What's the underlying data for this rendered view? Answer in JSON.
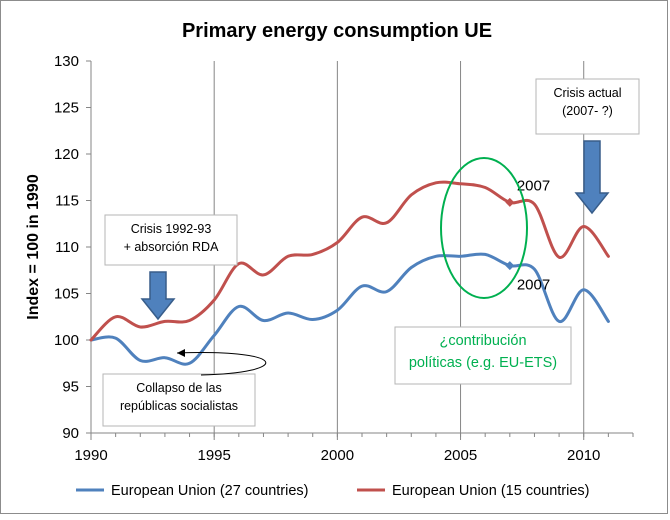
{
  "chart_data": {
    "type": "line",
    "title": "Primary energy consumption UE",
    "xlabel": "",
    "ylabel": "Index = 100 in 1990",
    "xlim": [
      1990,
      2012
    ],
    "ylim": [
      90,
      130
    ],
    "x_ticks": [
      "1990",
      "1995",
      "2000",
      "2005",
      "2010"
    ],
    "y_ticks": [
      "90",
      "95",
      "100",
      "105",
      "110",
      "115",
      "120",
      "125",
      "130"
    ],
    "grid": "vertical",
    "legend_position": "bottom",
    "x": [
      1990,
      1991,
      1992,
      1993,
      1994,
      1995,
      1996,
      1997,
      1998,
      1999,
      2000,
      2001,
      2002,
      2003,
      2004,
      2005,
      2006,
      2007,
      2008,
      2009,
      2010,
      2011
    ],
    "series": [
      {
        "name": "European Union (27 countries)",
        "color": "#4f81bd",
        "values": [
          100,
          100.2,
          97.8,
          98.1,
          97.5,
          100.5,
          103.6,
          102.1,
          102.9,
          102.2,
          103.2,
          105.8,
          105.2,
          107.8,
          109.0,
          109.0,
          109.2,
          108.0,
          107.6,
          102.0,
          105.4,
          102.0
        ]
      },
      {
        "name": "European Union (15 countries)",
        "color": "#c0504d",
        "values": [
          100,
          102.5,
          101.4,
          102.0,
          102.1,
          104.3,
          108.2,
          107.0,
          109.0,
          109.2,
          110.5,
          113.2,
          112.6,
          115.6,
          116.9,
          116.8,
          116.4,
          114.8,
          114.6,
          108.9,
          112.2,
          109.0
        ]
      }
    ],
    "point_labels": [
      {
        "series": 1,
        "x": 2007,
        "text": "2007"
      },
      {
        "series": 0,
        "x": 2007,
        "text": "2007"
      }
    ],
    "annotations": {
      "crisis_1992": [
        "Crisis 1992-93",
        "+ absorción RDA"
      ],
      "crisis_actual": [
        "Crisis actual",
        "(2007- ?)"
      ],
      "collapse": [
        "Collapso de las",
        "repúblicas socialistas"
      ],
      "policies": [
        "¿contribución",
        "políticas (e.g. EU-ETS)"
      ]
    },
    "colors": {
      "grid": "#868686",
      "axis": "#868686",
      "arrow_fill": "#4f81bd",
      "arrow_stroke": "#385d8a",
      "ellipse": "#00b050",
      "policies_text": "#00b050"
    }
  }
}
